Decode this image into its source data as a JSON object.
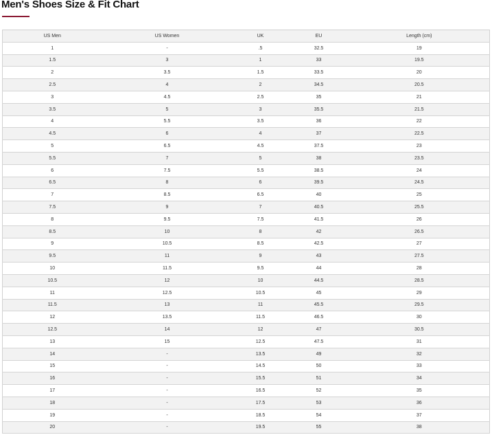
{
  "title": "Men's Shoes Size & Fit Chart",
  "accent_color": "#8b1a33",
  "columns": [
    "US Men",
    "US Women",
    "UK",
    "EU",
    "Length (cm)"
  ],
  "rows": [
    [
      "1",
      "-",
      ".5",
      "32.5",
      "19"
    ],
    [
      "1.5",
      "3",
      "1",
      "33",
      "19.5"
    ],
    [
      "2",
      "3.5",
      "1.5",
      "33.5",
      "20"
    ],
    [
      "2.5",
      "4",
      "2",
      "34.5",
      "20.5"
    ],
    [
      "3",
      "4.5",
      "2.5",
      "35",
      "21"
    ],
    [
      "3.5",
      "5",
      "3",
      "35.5",
      "21.5"
    ],
    [
      "4",
      "5.5",
      "3.5",
      "36",
      "22"
    ],
    [
      "4.5",
      "6",
      "4",
      "37",
      "22.5"
    ],
    [
      "5",
      "6.5",
      "4.5",
      "37.5",
      "23"
    ],
    [
      "5.5",
      "7",
      "5",
      "38",
      "23.5"
    ],
    [
      "6",
      "7.5",
      "5.5",
      "38.5",
      "24"
    ],
    [
      "6.5",
      "8",
      "6",
      "39.5",
      "24.5"
    ],
    [
      "7",
      "8.5",
      "6.5",
      "40",
      "25"
    ],
    [
      "7.5",
      "9",
      "7",
      "40.5",
      "25.5"
    ],
    [
      "8",
      "9.5",
      "7.5",
      "41.5",
      "26"
    ],
    [
      "8.5",
      "10",
      "8",
      "42",
      "26.5"
    ],
    [
      "9",
      "10.5",
      "8.5",
      "42.5",
      "27"
    ],
    [
      "9.5",
      "11",
      "9",
      "43",
      "27.5"
    ],
    [
      "10",
      "11.5",
      "9.5",
      "44",
      "28"
    ],
    [
      "10.5",
      "12",
      "10",
      "44.5",
      "28.5"
    ],
    [
      "11",
      "12.5",
      "10.5",
      "45",
      "29"
    ],
    [
      "11.5",
      "13",
      "11",
      "45.5",
      "29.5"
    ],
    [
      "12",
      "13.5",
      "11.5",
      "46.5",
      "30"
    ],
    [
      "12.5",
      "14",
      "12",
      "47",
      "30.5"
    ],
    [
      "13",
      "15",
      "12.5",
      "47.5",
      "31"
    ],
    [
      "14",
      "-",
      "13.5",
      "49",
      "32"
    ],
    [
      "15",
      "-",
      "14.5",
      "50",
      "33"
    ],
    [
      "16",
      "-",
      "15.5",
      "51",
      "34"
    ],
    [
      "17",
      "-",
      "16.5",
      "52",
      "35"
    ],
    [
      "18",
      "-",
      "17.5",
      "53",
      "36"
    ],
    [
      "19",
      "-",
      "18.5",
      "54",
      "37"
    ],
    [
      "20",
      "-",
      "19.5",
      "55",
      "38"
    ]
  ]
}
